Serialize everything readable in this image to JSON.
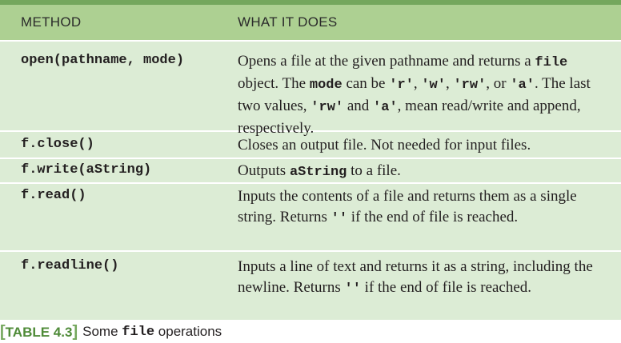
{
  "header": {
    "col_method": "METHOD",
    "col_desc": "WHAT IT DOES"
  },
  "rows": [
    {
      "method": "open(pathname, mode)",
      "desc": [
        {
          "t": "Opens a file at the given pathname and returns a "
        },
        {
          "c": "file"
        },
        {
          "t": " object. The "
        },
        {
          "c": "mode"
        },
        {
          "t": " can be "
        },
        {
          "c": "'r'"
        },
        {
          "t": ", "
        },
        {
          "c": "'w'"
        },
        {
          "t": ", "
        },
        {
          "c": "'rw'"
        },
        {
          "t": ", or "
        },
        {
          "c": "'a'"
        },
        {
          "t": ". The last two values, "
        },
        {
          "c": "'rw'"
        },
        {
          "t": " and "
        },
        {
          "c": "'a'"
        },
        {
          "t": ", mean read/write and append, respectively."
        }
      ]
    },
    {
      "method": "f.close()",
      "desc": [
        {
          "t": "Closes an output file. Not needed for input files."
        }
      ]
    },
    {
      "method": "f.write(aString)",
      "desc": [
        {
          "t": "Outputs "
        },
        {
          "c": "aString"
        },
        {
          "t": " to a file."
        }
      ]
    },
    {
      "method": "f.read()",
      "desc": [
        {
          "t": "Inputs the contents of a file and returns them as a single string. Returns "
        },
        {
          "c": "''"
        },
        {
          "t": " if the end of file is reached."
        }
      ]
    },
    {
      "method": "f.readline()",
      "desc": [
        {
          "t": "Inputs a line of text and returns it as a string, including the newline. Returns "
        },
        {
          "c": "''"
        },
        {
          "t": " if the end of file is reached."
        }
      ]
    }
  ],
  "caption": {
    "open_bracket": "[",
    "label": "TABLE 4.3",
    "close_bracket": "]",
    "text_before": "Some ",
    "code": "file",
    "text_after": " operations"
  },
  "colors": {
    "header_bg": "#add092",
    "top_bar": "#74a75d",
    "row_bg": "#dcecd5",
    "caption_tag": "#4f8b38"
  }
}
